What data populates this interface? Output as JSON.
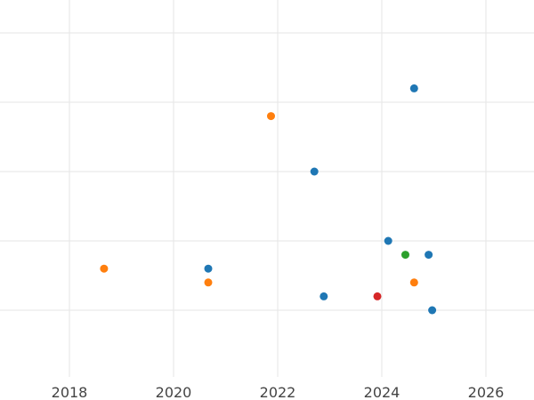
{
  "chart_data": {
    "type": "scatter",
    "title": "",
    "xlabel": "",
    "ylabel": "",
    "x_axis": {
      "type": "date",
      "range": [
        "2016-08-01",
        "2026-10-01"
      ],
      "ticks": [
        "2018",
        "2020",
        "2022",
        "2024",
        "2026"
      ]
    },
    "y_axis": {
      "range": [
        0,
        27
      ],
      "tick_labels_visible": false,
      "gridlines": [
        5,
        10,
        15,
        20,
        25
      ]
    },
    "grid": true,
    "legend": "none",
    "series": [
      {
        "color": "#1f77b4",
        "points": [
          {
            "x": "2020-09-01",
            "y": 8
          },
          {
            "x": "2022-09-15",
            "y": 15
          },
          {
            "x": "2022-11-20",
            "y": 6
          },
          {
            "x": "2024-02-15",
            "y": 10
          },
          {
            "x": "2024-08-15",
            "y": 21
          },
          {
            "x": "2024-11-25",
            "y": 9
          },
          {
            "x": "2024-12-20",
            "y": 5
          }
        ]
      },
      {
        "color": "#ff7f0e",
        "points": [
          {
            "x": "2018-09-01",
            "y": 8
          },
          {
            "x": "2020-09-01",
            "y": 7
          },
          {
            "x": "2021-11-15",
            "y": 19
          },
          {
            "x": "2024-08-15",
            "y": 7
          }
        ]
      },
      {
        "color": "#2ca02c",
        "points": [
          {
            "x": "2024-06-15",
            "y": 9
          }
        ]
      },
      {
        "color": "#d62728",
        "points": [
          {
            "x": "2023-12-01",
            "y": 6
          }
        ]
      }
    ]
  }
}
